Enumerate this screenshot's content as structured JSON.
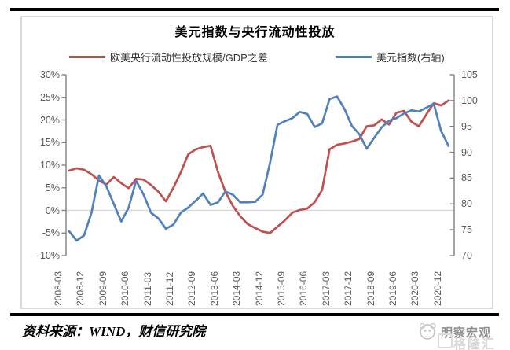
{
  "chart": {
    "title": "美元指数与央行流动性投放",
    "legend": [
      {
        "label": "欧美央行流动性投放规模/GDP之差",
        "color": "#C0504D"
      },
      {
        "label": "美元指数(右轴)",
        "color": "#4F81BD"
      }
    ]
  },
  "chart_data": {
    "type": "line",
    "title": "美元指数与央行流动性投放",
    "x": [
      "2008-03",
      "2008-06",
      "2008-09",
      "2008-12",
      "2009-03",
      "2009-06",
      "2009-09",
      "2009-12",
      "2010-03",
      "2010-06",
      "2010-09",
      "2010-12",
      "2011-03",
      "2011-06",
      "2011-09",
      "2011-12",
      "2012-03",
      "2012-06",
      "2012-09",
      "2012-12",
      "2013-03",
      "2013-06",
      "2013-09",
      "2013-12",
      "2014-03",
      "2014-06",
      "2014-09",
      "2014-12",
      "2015-03",
      "2015-06",
      "2015-09",
      "2015-12",
      "2016-03",
      "2016-06",
      "2016-09",
      "2016-12",
      "2017-03",
      "2017-06",
      "2017-09",
      "2017-12",
      "2018-03",
      "2018-06",
      "2018-09",
      "2018-12",
      "2019-03",
      "2019-06",
      "2019-09",
      "2019-12",
      "2020-03",
      "2020-06",
      "2020-09",
      "2020-12"
    ],
    "x_tick_labels": [
      "2008-03",
      "2008-12",
      "2009-09",
      "2010-06",
      "2011-03",
      "2011-12",
      "2012-09",
      "2013-06",
      "2014-03",
      "2014-12",
      "2015-09",
      "2016-06",
      "2017-03",
      "2017-12",
      "2018-09",
      "2019-06",
      "2020-03",
      "2020-12"
    ],
    "series": [
      {
        "name": "欧美央行流动性投放规模/GDP之差",
        "axis": "left",
        "color": "#C0504D",
        "values": [
          8.8,
          9.3,
          9.0,
          8.0,
          6.6,
          5.7,
          7.4,
          6.0,
          4.9,
          7.0,
          6.8,
          5.6,
          4.1,
          2.0,
          5.0,
          8.4,
          12.4,
          13.5,
          14.0,
          14.3,
          8.5,
          4.1,
          1.0,
          -1.3,
          -3.0,
          -3.9,
          -4.7,
          -5.0,
          -3.6,
          -2.2,
          -0.5,
          0.1,
          0.4,
          1.8,
          4.5,
          13.5,
          14.5,
          14.8,
          15.2,
          15.8,
          18.6,
          18.8,
          20.1,
          19.0,
          21.6,
          22.0,
          19.6,
          18.6,
          21.2,
          23.7,
          23.2,
          24.3
        ]
      },
      {
        "name": "美元指数(右轴)",
        "axis": "right",
        "color": "#4F81BD",
        "values": [
          74.7,
          72.9,
          73.9,
          78.3,
          85.5,
          83.4,
          80.0,
          76.6,
          79.3,
          84.5,
          81.8,
          78.3,
          77.2,
          75.2,
          76.0,
          78.3,
          79.3,
          80.6,
          82.0,
          79.8,
          80.3,
          82.4,
          81.8,
          80.3,
          80.3,
          80.4,
          81.8,
          88.0,
          95.3,
          96.0,
          96.6,
          97.8,
          97.4,
          94.9,
          95.6,
          100.3,
          100.8,
          98.4,
          95.1,
          93.5,
          90.7,
          92.8,
          94.8,
          96.1,
          96.6,
          97.5,
          98.1,
          97.9,
          98.6,
          99.4,
          94.1,
          91.2
        ]
      }
    ],
    "left_axis": {
      "min": -10,
      "max": 30,
      "tick_labels": [
        "30%",
        "25%",
        "20%",
        "15%",
        "10%",
        "5%",
        "0%",
        "-5%",
        "-10%"
      ]
    },
    "right_axis": {
      "min": 70,
      "max": 105,
      "tick_labels": [
        "105",
        "100",
        "95",
        "90",
        "85",
        "80",
        "75",
        "70"
      ]
    },
    "gridline_at_left_value": 0,
    "legend_position": "top",
    "grid": "off"
  },
  "source": {
    "text": "资料来源：WIND，财信研究院"
  },
  "watermark": {
    "primary": "明察宏观",
    "secondary": "格隆汇"
  }
}
